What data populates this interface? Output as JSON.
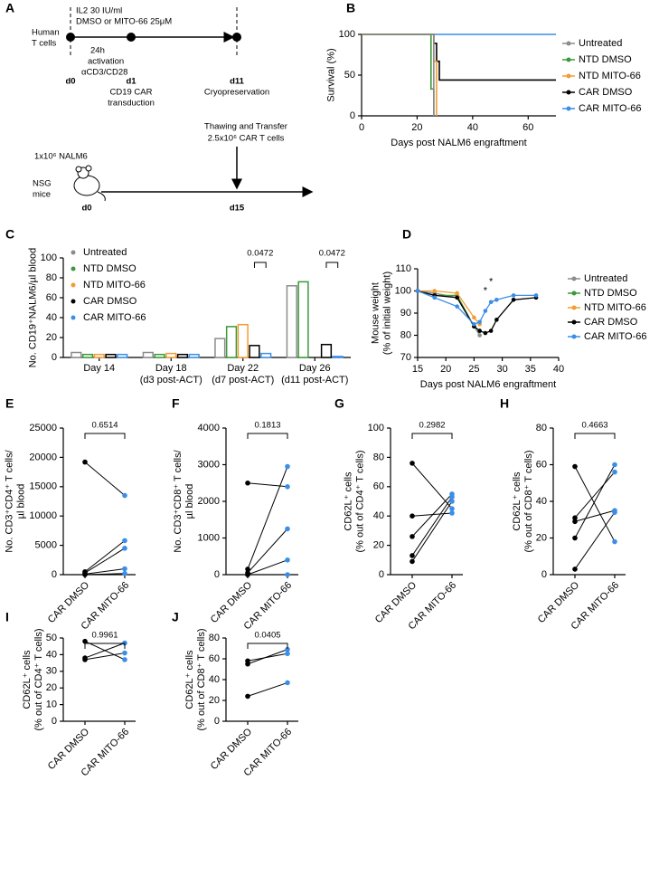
{
  "diagram": {
    "panel": "A",
    "human": [
      "Human",
      "T cells"
    ],
    "il2": "IL2 30 IU/ml",
    "treatment": "DMSO or MITO-66 25μM",
    "activation": [
      "24h",
      "activation",
      "αCD3/CD28"
    ],
    "d0": "d0",
    "d1": "d1",
    "d11": "d11",
    "transduction": [
      "CD19 CAR",
      "transduction"
    ],
    "cryo": "Cryopreservation",
    "transfer": [
      "Thawing and Transfer",
      "2.5x10⁶ CAR T cells"
    ],
    "nalm6": "1x10⁶ NALM6",
    "mice": [
      "NSG",
      "mice"
    ],
    "m_d0": "d0",
    "m_d15": "d15"
  },
  "chart_data": [
    {
      "type": "step",
      "panel": "B",
      "xlabel": "Days post NALM6 engraftment",
      "ylabel": "Survival (%)",
      "x": [
        0,
        25,
        26,
        27,
        28,
        70
      ],
      "series": [
        {
          "name": "Untreated",
          "color": "#8c8c8c",
          "values": [
            100,
            100,
            0,
            null,
            null,
            null
          ]
        },
        {
          "name": "NTD DMSO",
          "color": "#3a9a3a",
          "values": [
            100,
            33,
            0,
            null,
            null,
            null
          ]
        },
        {
          "name": "NTD MITO-66",
          "color": "#f39c34",
          "values": [
            100,
            100,
            67,
            0,
            null,
            null
          ]
        },
        {
          "name": "CAR DMSO",
          "color": "#000000",
          "values": [
            100,
            100,
            89,
            67,
            44,
            44
          ]
        },
        {
          "name": "CAR MITO-66",
          "color": "#3b8ee8",
          "values": [
            100,
            100,
            100,
            100,
            100,
            100
          ]
        }
      ],
      "xlim": [
        0,
        70
      ],
      "xticks": [
        0,
        20,
        40,
        60
      ],
      "ylim": [
        0,
        100
      ],
      "yticks": [
        0,
        50,
        100
      ],
      "legend": "right"
    },
    {
      "type": "bar",
      "panel": "C",
      "ylabel": "No. CD19⁺NALM6/µl blood",
      "categories": [
        [
          "Day 14"
        ],
        [
          "Day 18",
          "(d3 post-ACT)"
        ],
        [
          "Day 22",
          "(d7 post-ACT)"
        ],
        [
          "Day 26",
          "(d11 post-ACT)"
        ]
      ],
      "series": [
        {
          "name": "Untreated",
          "color": "#8c8c8c",
          "values": [
            5,
            5,
            19,
            72
          ]
        },
        {
          "name": "NTD DMSO",
          "color": "#3a9a3a",
          "values": [
            3,
            3,
            31,
            76
          ]
        },
        {
          "name": "NTD MITO-66",
          "color": "#f39c34",
          "values": [
            3,
            4,
            33,
            null
          ]
        },
        {
          "name": "CAR DMSO",
          "color": "#000000",
          "values": [
            3,
            3,
            12,
            13
          ]
        },
        {
          "name": "CAR MITO-66",
          "color": "#3b8ee8",
          "values": [
            3,
            3,
            4,
            1
          ]
        }
      ],
      "annotations": [
        {
          "text": "0.0472",
          "category": 2
        },
        {
          "text": "0.0472",
          "category": 3
        }
      ],
      "ylim": [
        0,
        100
      ],
      "yticks": [
        0,
        20,
        40,
        60,
        80,
        100
      ],
      "legend": "top-left"
    },
    {
      "type": "line",
      "panel": "D",
      "xlabel": "Days post NALM6 engraftment",
      "ylabel": [
        "Mouse weight",
        "(% of initial weight)"
      ],
      "x": [
        15,
        18,
        22,
        25,
        26,
        27,
        28,
        29,
        32,
        36
      ],
      "series": [
        {
          "name": "Untreated",
          "color": "#8c8c8c",
          "values": [
            100,
            99,
            97,
            84,
            80,
            null,
            null,
            null,
            null,
            null
          ]
        },
        {
          "name": "NTD DMSO",
          "color": "#3a9a3a",
          "values": [
            100,
            98,
            98,
            84,
            82,
            null,
            null,
            null,
            null,
            null
          ]
        },
        {
          "name": "NTD MITO-66",
          "color": "#f39c34",
          "values": [
            100,
            100,
            99,
            88,
            85,
            null,
            null,
            null,
            null,
            null
          ]
        },
        {
          "name": "CAR DMSO",
          "color": "#000000",
          "values": [
            100,
            98,
            97,
            84,
            82,
            81,
            82,
            87,
            96,
            97
          ]
        },
        {
          "name": "CAR MITO-66",
          "color": "#3b8ee8",
          "values": [
            100,
            97,
            93,
            85,
            86,
            91,
            95,
            96,
            98,
            98
          ]
        }
      ],
      "annotations": [
        {
          "text": "*",
          "x": 27
        },
        {
          "text": "*",
          "x": 28
        }
      ],
      "xlim": [
        15,
        40
      ],
      "xticks": [
        15,
        20,
        25,
        30,
        35,
        40
      ],
      "ylim": [
        70,
        110
      ],
      "yticks": [
        70,
        80,
        90,
        100,
        110
      ],
      "legend": "right"
    },
    {
      "type": "paired",
      "panel": "E",
      "ylabel": [
        "No. CD3⁺CD4⁺ T cells/",
        "µl blood"
      ],
      "categories": [
        "CAR DMSO",
        "CAR MITO-66"
      ],
      "colors": [
        "#000000",
        "#3b8ee8"
      ],
      "pairs": [
        [
          19200,
          13500
        ],
        [
          500,
          5800
        ],
        [
          300,
          4500
        ],
        [
          100,
          1000
        ],
        [
          0,
          200
        ]
      ],
      "p_value": "0.6514",
      "ylim": [
        0,
        25000
      ],
      "yticks": [
        0,
        5000,
        10000,
        15000,
        20000,
        25000
      ]
    },
    {
      "type": "paired",
      "panel": "F",
      "ylabel": [
        "No. CD3⁺CD8⁺ T cells/",
        "µl blood"
      ],
      "categories": [
        "CAR DMSO",
        "CAR MITO-66"
      ],
      "colors": [
        "#000000",
        "#3b8ee8"
      ],
      "pairs": [
        [
          2500,
          2400
        ],
        [
          150,
          2950
        ],
        [
          50,
          1250
        ],
        [
          0,
          400
        ],
        [
          0,
          0
        ]
      ],
      "p_value": "0.1813",
      "ylim": [
        0,
        4000
      ],
      "yticks": [
        0,
        1000,
        2000,
        3000,
        4000
      ]
    },
    {
      "type": "paired",
      "panel": "G",
      "ylabel": [
        "CD62L⁺ cells",
        "(% out of CD4⁺ T cells)"
      ],
      "categories": [
        "CAR DMSO",
        "CAR MITO-66"
      ],
      "colors": [
        "#000000",
        "#3b8ee8"
      ],
      "pairs": [
        [
          76,
          45
        ],
        [
          40,
          42
        ],
        [
          26,
          55
        ],
        [
          13,
          53
        ],
        [
          9,
          50
        ]
      ],
      "p_value": "0.2982",
      "ylim": [
        0,
        100
      ],
      "yticks": [
        0,
        20,
        40,
        60,
        80,
        100
      ]
    },
    {
      "type": "paired",
      "panel": "H",
      "ylabel": [
        "CD62L⁺ cells",
        "(% out of CD8⁺ T cells)"
      ],
      "categories": [
        "CAR DMSO",
        "CAR MITO-66"
      ],
      "colors": [
        "#000000",
        "#3b8ee8"
      ],
      "pairs": [
        [
          59,
          18
        ],
        [
          31,
          56
        ],
        [
          29,
          35
        ],
        [
          20,
          60
        ],
        [
          3,
          34
        ]
      ],
      "p_value": "0.4663",
      "ylim": [
        0,
        80
      ],
      "yticks": [
        0,
        20,
        40,
        60,
        80
      ]
    },
    {
      "type": "paired",
      "panel": "I",
      "ylabel": [
        "CD62L⁺ cells",
        "(% out of CD4⁺ T cells)"
      ],
      "categories": [
        "CAR DMSO",
        "CAR MITO-66"
      ],
      "colors": [
        "#000000",
        "#3b8ee8"
      ],
      "pairs": [
        [
          48,
          37
        ],
        [
          38,
          47
        ],
        [
          37,
          41
        ]
      ],
      "p_value": "0.9961",
      "ylim": [
        0,
        50
      ],
      "yticks": [
        0,
        10,
        20,
        30,
        40,
        50
      ]
    },
    {
      "type": "paired",
      "panel": "J",
      "ylabel": [
        "CD62L⁺ cells",
        "(% out of CD8⁺ T cells)"
      ],
      "categories": [
        "CAR DMSO",
        "CAR MITO-66"
      ],
      "colors": [
        "#000000",
        "#3b8ee8"
      ],
      "pairs": [
        [
          58,
          65
        ],
        [
          55,
          69
        ],
        [
          24,
          37
        ]
      ],
      "p_value": "0.0405",
      "ylim": [
        0,
        80
      ],
      "yticks": [
        0,
        20,
        40,
        60,
        80
      ]
    }
  ]
}
